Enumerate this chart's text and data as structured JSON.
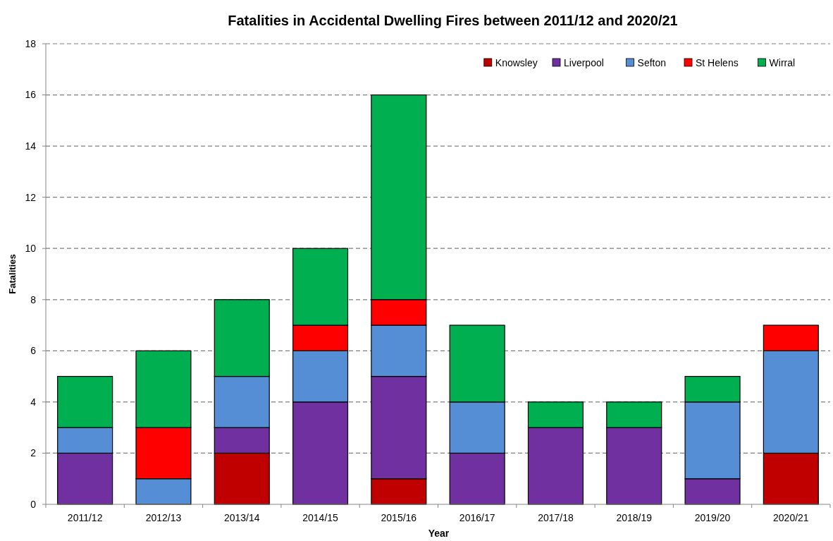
{
  "chart_data": {
    "type": "bar",
    "title": "Fatalities in Accidental Dwelling Fires between 2011/12 and 2020/21",
    "xlabel": "Year",
    "ylabel": "Fatalities",
    "categories": [
      "2011/12",
      "2012/13",
      "2013/14",
      "2014/15",
      "2015/16",
      "2016/17",
      "2017/18",
      "2018/19",
      "2019/20",
      "2020/21"
    ],
    "stacked": true,
    "ylim": [
      0,
      18
    ],
    "yticks": [
      0,
      2,
      4,
      6,
      8,
      10,
      12,
      14,
      16,
      18
    ],
    "grid": "y",
    "legend": "top right",
    "series": [
      {
        "name": "Knowsley",
        "color": "#c00000",
        "values": [
          0,
          0,
          2,
          0,
          1,
          0,
          0,
          0,
          0,
          2
        ]
      },
      {
        "name": "Liverpool",
        "color": "#7030a0",
        "values": [
          2,
          0,
          1,
          4,
          4,
          2,
          3,
          3,
          1,
          0
        ]
      },
      {
        "name": "Sefton",
        "color": "#558ed5",
        "values": [
          1,
          1,
          2,
          2,
          2,
          2,
          0,
          0,
          3,
          4
        ]
      },
      {
        "name": "St Helens",
        "color": "#ff0000",
        "values": [
          0,
          2,
          0,
          1,
          1,
          0,
          0,
          0,
          0,
          1
        ]
      },
      {
        "name": "Wirral",
        "color": "#00b050",
        "values": [
          2,
          3,
          3,
          3,
          8,
          3,
          1,
          1,
          1,
          0
        ]
      }
    ]
  }
}
